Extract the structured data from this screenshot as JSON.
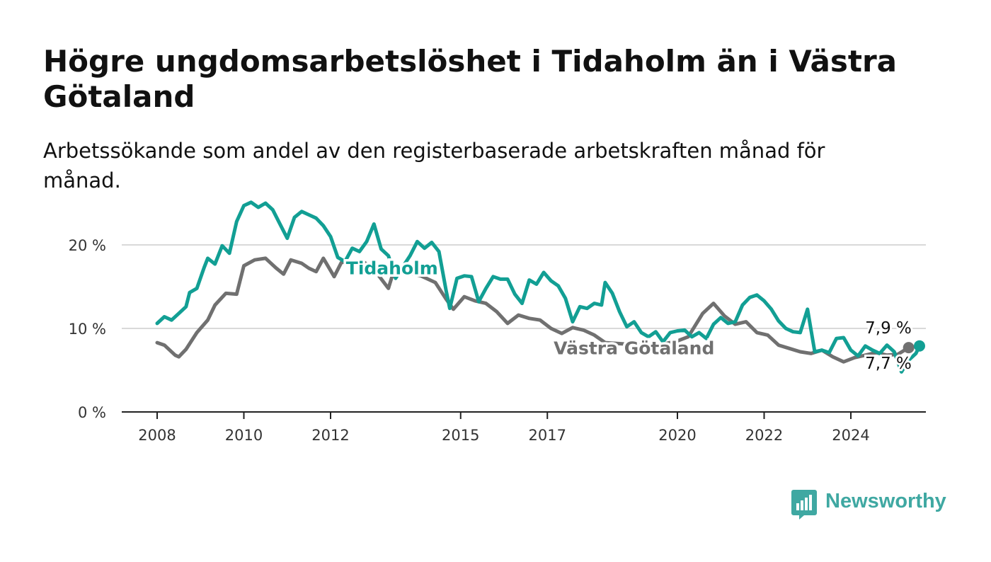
{
  "title": "Högre ungdomsarbetslöshet i Tidaholm än i Västra Götaland",
  "subtitle": "Arbetssökande som andel av den registerbaserade arbetskraften månad för månad.",
  "brand": {
    "name": "Newsworthy",
    "color": "#3fa8a2"
  },
  "chart_data": {
    "type": "line",
    "title": "Högre ungdomsarbetslöshet i Tidaholm än i Västra Götaland",
    "subtitle": "Arbetssökande som andel av den registerbaserade arbetskraften månad för månad.",
    "xlim": [
      "2008-01",
      "2025-08"
    ],
    "ylim": [
      0,
      25
    ],
    "x_ticks": [
      "2008",
      "2010",
      "2012",
      "2015",
      "2017",
      "2020",
      "2022",
      "2024"
    ],
    "y_ticks": [
      {
        "value": 0,
        "label": "0 %"
      },
      {
        "value": 10,
        "label": "10 %"
      },
      {
        "value": 20,
        "label": "20 %"
      }
    ],
    "grid": true,
    "series": [
      {
        "name": "Västra Götaland",
        "color": "#707070",
        "end_label": "7,7 %",
        "points": [
          [
            "2008-01",
            8.3
          ],
          [
            "2008-03",
            8.0
          ],
          [
            "2008-06",
            6.8
          ],
          [
            "2008-07",
            6.6
          ],
          [
            "2008-09",
            7.5
          ],
          [
            "2008-12",
            9.5
          ],
          [
            "2009-03",
            11.0
          ],
          [
            "2009-05",
            12.8
          ],
          [
            "2009-08",
            14.2
          ],
          [
            "2009-11",
            14.1
          ],
          [
            "2010-01",
            17.5
          ],
          [
            "2010-04",
            18.2
          ],
          [
            "2010-07",
            18.4
          ],
          [
            "2010-10",
            17.2
          ],
          [
            "2010-12",
            16.5
          ],
          [
            "2011-02",
            18.2
          ],
          [
            "2011-05",
            17.8
          ],
          [
            "2011-07",
            17.2
          ],
          [
            "2011-09",
            16.8
          ],
          [
            "2011-11",
            18.4
          ],
          [
            "2012-02",
            16.2
          ],
          [
            "2012-04",
            17.9
          ],
          [
            "2012-07",
            18.0
          ],
          [
            "2012-10",
            18.0
          ],
          [
            "2012-12",
            17.4
          ],
          [
            "2013-02",
            16.5
          ],
          [
            "2013-05",
            14.8
          ],
          [
            "2013-06",
            16.2
          ],
          [
            "2013-09",
            16.8
          ],
          [
            "2014-02",
            16.3
          ],
          [
            "2014-06",
            15.5
          ],
          [
            "2014-09",
            13.5
          ],
          [
            "2014-11",
            12.3
          ],
          [
            "2015-02",
            13.8
          ],
          [
            "2015-05",
            13.3
          ],
          [
            "2015-08",
            13.0
          ],
          [
            "2015-11",
            12.0
          ],
          [
            "2016-02",
            10.6
          ],
          [
            "2016-05",
            11.6
          ],
          [
            "2016-08",
            11.2
          ],
          [
            "2016-11",
            11.0
          ],
          [
            "2017-02",
            10.0
          ],
          [
            "2017-05",
            9.4
          ],
          [
            "2017-08",
            10.1
          ],
          [
            "2017-11",
            9.8
          ],
          [
            "2018-02",
            9.2
          ],
          [
            "2018-05",
            8.3
          ],
          [
            "2019-03",
            8.0
          ],
          [
            "2019-08",
            8.0
          ],
          [
            "2020-01",
            8.5
          ],
          [
            "2020-04",
            9.0
          ],
          [
            "2020-08",
            11.8
          ],
          [
            "2020-11",
            13.0
          ],
          [
            "2021-02",
            11.5
          ],
          [
            "2021-05",
            10.5
          ],
          [
            "2021-08",
            10.8
          ],
          [
            "2021-11",
            9.5
          ],
          [
            "2022-02",
            9.2
          ],
          [
            "2022-05",
            8.0
          ],
          [
            "2022-08",
            7.6
          ],
          [
            "2022-11",
            7.2
          ],
          [
            "2023-02",
            7.0
          ],
          [
            "2023-05",
            7.4
          ],
          [
            "2023-08",
            6.6
          ],
          [
            "2023-11",
            6.0
          ],
          [
            "2024-02",
            6.5
          ],
          [
            "2024-05",
            6.8
          ],
          [
            "2024-08",
            7.1
          ],
          [
            "2024-11",
            6.8
          ],
          [
            "2025-02",
            6.9
          ],
          [
            "2025-05",
            7.7
          ]
        ]
      },
      {
        "name": "Tidaholm",
        "color": "#129f94",
        "end_label": "7,9 %",
        "points": [
          [
            "2008-01",
            10.6
          ],
          [
            "2008-03",
            11.4
          ],
          [
            "2008-05",
            11.0
          ],
          [
            "2008-07",
            11.8
          ],
          [
            "2008-09",
            12.6
          ],
          [
            "2008-10",
            14.3
          ],
          [
            "2008-12",
            14.8
          ],
          [
            "2009-02",
            17.3
          ],
          [
            "2009-03",
            18.4
          ],
          [
            "2009-05",
            17.7
          ],
          [
            "2009-07",
            19.9
          ],
          [
            "2009-09",
            19.0
          ],
          [
            "2009-11",
            22.8
          ],
          [
            "2010-01",
            24.7
          ],
          [
            "2010-03",
            25.1
          ],
          [
            "2010-05",
            24.5
          ],
          [
            "2010-07",
            25.0
          ],
          [
            "2010-09",
            24.2
          ],
          [
            "2010-11",
            22.5
          ],
          [
            "2011-01",
            20.8
          ],
          [
            "2011-03",
            23.3
          ],
          [
            "2011-05",
            24.0
          ],
          [
            "2011-07",
            23.6
          ],
          [
            "2011-09",
            23.2
          ],
          [
            "2011-11",
            22.3
          ],
          [
            "2012-01",
            21.0
          ],
          [
            "2012-03",
            18.5
          ],
          [
            "2012-05",
            18.0
          ],
          [
            "2012-07",
            19.6
          ],
          [
            "2012-09",
            19.2
          ],
          [
            "2012-11",
            20.4
          ],
          [
            "2013-01",
            22.5
          ],
          [
            "2013-03",
            19.5
          ],
          [
            "2013-05",
            18.7
          ],
          [
            "2013-07",
            16.0
          ],
          [
            "2013-09",
            17.4
          ],
          [
            "2013-11",
            18.7
          ],
          [
            "2014-01",
            20.4
          ],
          [
            "2014-03",
            19.6
          ],
          [
            "2014-05",
            20.3
          ],
          [
            "2014-07",
            19.2
          ],
          [
            "2014-09",
            14.5
          ],
          [
            "2014-10",
            12.4
          ],
          [
            "2014-12",
            16.0
          ],
          [
            "2015-02",
            16.3
          ],
          [
            "2015-04",
            16.2
          ],
          [
            "2015-06",
            13.2
          ],
          [
            "2015-08",
            14.8
          ],
          [
            "2015-10",
            16.2
          ],
          [
            "2015-12",
            15.9
          ],
          [
            "2016-02",
            15.9
          ],
          [
            "2016-04",
            14.1
          ],
          [
            "2016-06",
            13.0
          ],
          [
            "2016-08",
            15.8
          ],
          [
            "2016-10",
            15.3
          ],
          [
            "2016-12",
            16.7
          ],
          [
            "2017-02",
            15.7
          ],
          [
            "2017-04",
            15.1
          ],
          [
            "2017-06",
            13.6
          ],
          [
            "2017-08",
            10.8
          ],
          [
            "2017-10",
            12.6
          ],
          [
            "2017-12",
            12.4
          ],
          [
            "2018-02",
            13.0
          ],
          [
            "2018-04",
            12.8
          ],
          [
            "2018-05",
            15.5
          ],
          [
            "2018-07",
            14.2
          ],
          [
            "2018-09",
            12.0
          ],
          [
            "2018-11",
            10.2
          ],
          [
            "2019-01",
            10.8
          ],
          [
            "2019-03",
            9.5
          ],
          [
            "2019-05",
            9.0
          ],
          [
            "2019-07",
            9.6
          ],
          [
            "2019-09",
            8.4
          ],
          [
            "2019-11",
            9.5
          ],
          [
            "2020-01",
            9.7
          ],
          [
            "2020-03",
            9.8
          ],
          [
            "2020-05",
            9.0
          ],
          [
            "2020-07",
            9.5
          ],
          [
            "2020-09",
            8.8
          ],
          [
            "2020-11",
            10.5
          ],
          [
            "2021-01",
            11.3
          ],
          [
            "2021-03",
            10.6
          ],
          [
            "2021-05",
            10.8
          ],
          [
            "2021-07",
            12.8
          ],
          [
            "2021-09",
            13.7
          ],
          [
            "2021-11",
            14.0
          ],
          [
            "2022-01",
            13.3
          ],
          [
            "2022-03",
            12.3
          ],
          [
            "2022-05",
            10.9
          ],
          [
            "2022-07",
            10.0
          ],
          [
            "2022-09",
            9.6
          ],
          [
            "2022-11",
            9.5
          ],
          [
            "2023-01",
            12.3
          ],
          [
            "2023-03",
            7.2
          ],
          [
            "2023-05",
            7.4
          ],
          [
            "2023-07",
            7.1
          ],
          [
            "2023-09",
            8.8
          ],
          [
            "2023-11",
            8.9
          ],
          [
            "2024-01",
            7.4
          ],
          [
            "2024-03",
            6.7
          ],
          [
            "2024-05",
            7.9
          ],
          [
            "2024-07",
            7.4
          ],
          [
            "2024-09",
            7.0
          ],
          [
            "2024-11",
            8.0
          ],
          [
            "2025-01",
            7.2
          ],
          [
            "2025-03",
            4.8
          ],
          [
            "2025-05",
            6.2
          ],
          [
            "2025-07",
            7.0
          ],
          [
            "2025-08",
            7.9
          ]
        ]
      }
    ]
  }
}
